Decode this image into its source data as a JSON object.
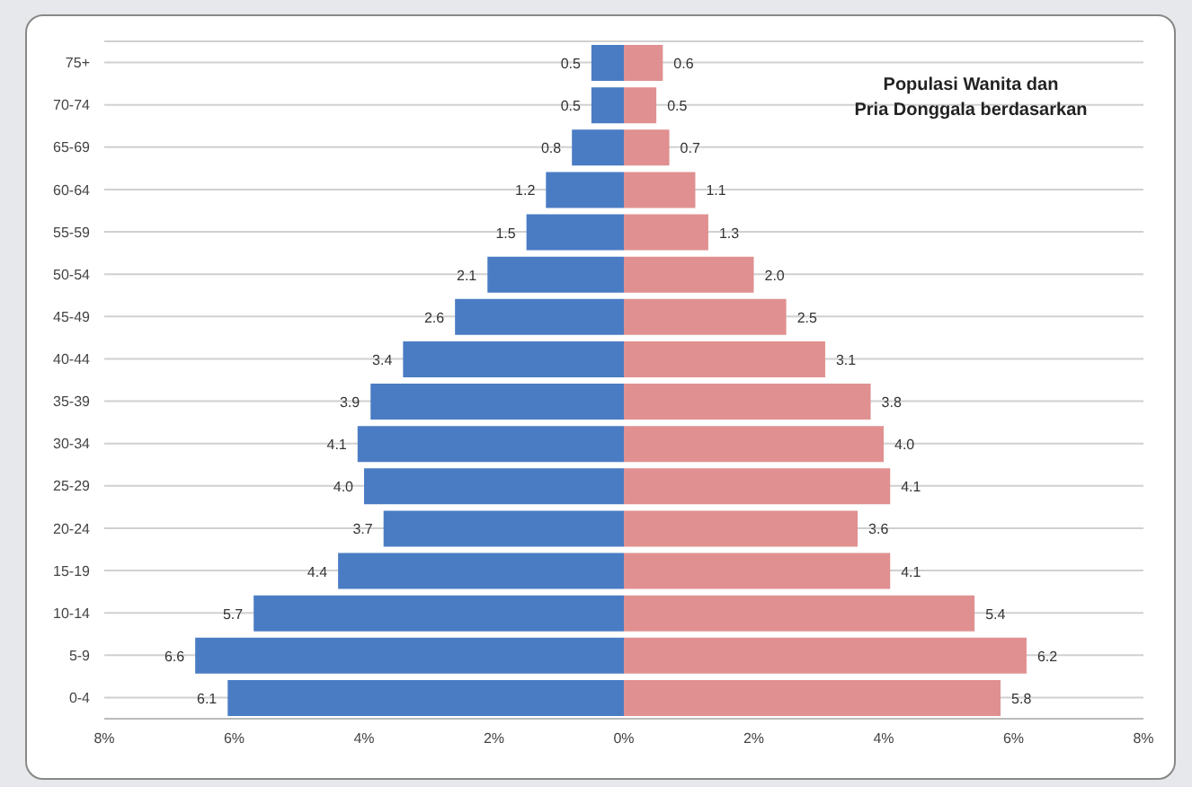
{
  "chart_data": {
    "type": "bar",
    "orientation": "horizontal",
    "title": "Populasi Wanita dan Pria Donggala berdasarkan",
    "categories": [
      "75+",
      "70-74",
      "65-69",
      "60-64",
      "55-59",
      "50-54",
      "45-49",
      "40-44",
      "35-39",
      "30-34",
      "25-29",
      "20-24",
      "15-19",
      "10-14",
      "5-9",
      "0-4"
    ],
    "series": [
      {
        "color": "#4a7cc4",
        "values": [
          0.5,
          0.5,
          0.8,
          1.2,
          1.5,
          2.1,
          2.6,
          3.4,
          3.9,
          4.1,
          4.0,
          3.7,
          4.4,
          5.7,
          6.6,
          6.1
        ],
        "base": [
          -0.5,
          -0.5,
          -0.8,
          -1.2,
          -1.5,
          -2.1,
          -2.6,
          -3.4,
          -3.9,
          -4.1,
          -4.0,
          -3.7,
          -4.4,
          -5.7,
          -6.6,
          -6.1
        ],
        "value_labels": [
          "0.5",
          "0.5",
          "0.8",
          "1.2",
          "1.5",
          "2.1",
          "2.6",
          "3.4",
          "3.9",
          "4.1",
          "4.0",
          "3.7",
          "4.4",
          "5.7",
          "6.6",
          "6.1"
        ]
      },
      {
        "color": "#e09090",
        "values": [
          0.6,
          0.5,
          0.7,
          1.1,
          1.3,
          2.0,
          2.5,
          3.1,
          3.8,
          4.0,
          4.1,
          3.6,
          4.1,
          5.4,
          6.2,
          5.8
        ],
        "value_labels": [
          "0.6",
          "0.5",
          "0.7",
          "1.1",
          "1.3",
          "2.0",
          "2.5",
          "3.1",
          "3.8",
          "4.0",
          "4.1",
          "3.6",
          "4.1",
          "5.4",
          "6.2",
          "5.8"
        ]
      }
    ],
    "xlim": [
      -8,
      8
    ],
    "xticks": [
      {
        "value": -8,
        "label": "8%"
      },
      {
        "value": -6,
        "label": "6%"
      },
      {
        "value": -4,
        "label": "4%"
      },
      {
        "value": -2,
        "label": "2%"
      },
      {
        "value": 0,
        "label": "0%"
      },
      {
        "value": 2,
        "label": "2%"
      },
      {
        "value": 4,
        "label": "4%"
      },
      {
        "value": 6,
        "label": "6%"
      },
      {
        "value": 8,
        "label": "8%"
      }
    ],
    "grid": "y",
    "legend": false
  }
}
